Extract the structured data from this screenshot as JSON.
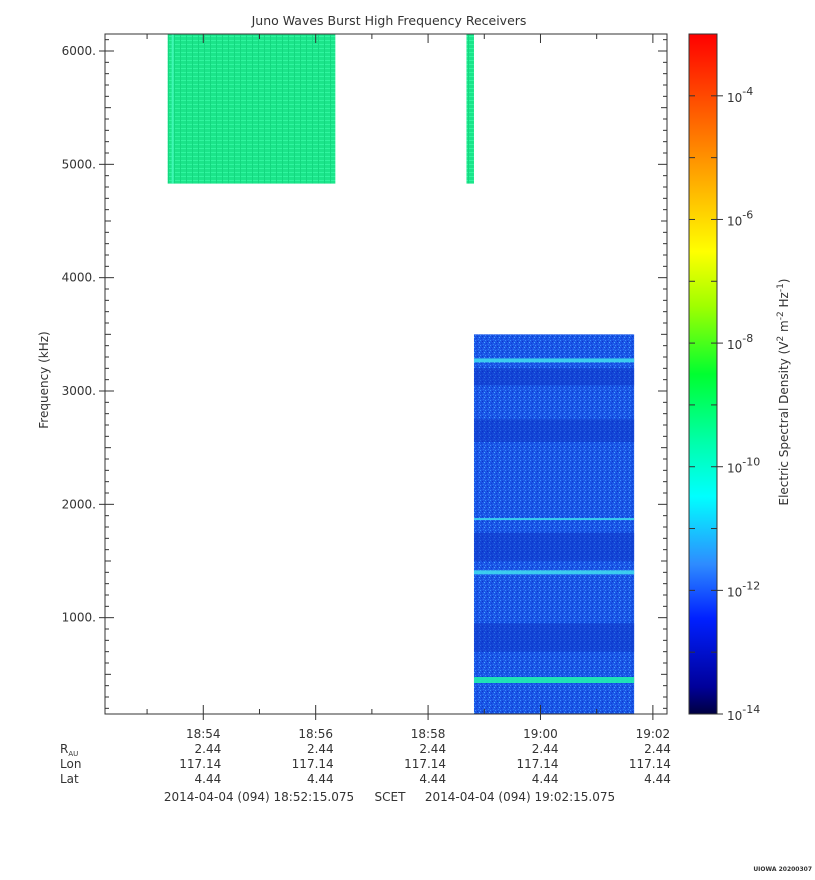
{
  "chart_data": {
    "type": "heatmap",
    "title": "Juno Waves Burst High Frequency Receivers",
    "ylabel": "Frequency (kHz)",
    "ylim": [
      150,
      6150
    ],
    "xlim": [
      "18:52:15.075",
      "19:02:15.075"
    ],
    "y_ticks": [
      {
        "value": 1000,
        "label": "1000."
      },
      {
        "value": 2000,
        "label": "2000."
      },
      {
        "value": 3000,
        "label": "3000."
      },
      {
        "value": 4000,
        "label": "4000."
      },
      {
        "value": 5000,
        "label": "5000."
      },
      {
        "value": 6000,
        "label": "6000."
      }
    ],
    "x_ticks": [
      "18:54",
      "18:56",
      "18:58",
      "19:00",
      "19:02"
    ],
    "ephemeris": {
      "rows": [
        {
          "label": "R",
          "sub": "AU",
          "values": [
            "2.44",
            "2.44",
            "2.44",
            "2.44",
            "2.44"
          ]
        },
        {
          "label": "Lon",
          "values": [
            "117.14",
            "117.14",
            "117.14",
            "117.14",
            "117.14"
          ]
        },
        {
          "label": "Lat",
          "values": [
            "4.44",
            "4.44",
            "4.44",
            "4.44",
            "4.44"
          ]
        }
      ]
    },
    "time_range": {
      "start": "2014-04-04 (094) 18:52:15.075",
      "mid_label": "SCET",
      "end": "2014-04-04 (094) 19:02:15.075"
    },
    "colorbar": {
      "label": "Electric Spectral Density (V",
      "label_parts": [
        "Electric Spectral Density (V",
        "2",
        " m",
        "-2",
        " Hz",
        "-1",
        ")"
      ],
      "scale": "log",
      "range": [
        1e-14,
        0.001
      ],
      "ticks": [
        {
          "base": "10",
          "exp": "-14",
          "value": 1e-14
        },
        {
          "base": "10",
          "exp": "-12",
          "value": 1e-12
        },
        {
          "base": "10",
          "exp": "-10",
          "value": 1e-10
        },
        {
          "base": "10",
          "exp": "-8",
          "value": 1e-08
        },
        {
          "base": "10",
          "exp": "-6",
          "value": 1e-06
        },
        {
          "base": "10",
          "exp": "-4",
          "value": 0.0001
        }
      ]
    },
    "blocks": [
      {
        "name": "high-band-1",
        "t_start": "18:53:22",
        "t_end": "18:56:21",
        "f_min": 4830,
        "f_max": 6150,
        "level": 2e-10
      },
      {
        "name": "high-band-2",
        "t_start": "18:58:41",
        "t_end": "18:58:49",
        "f_min": 4830,
        "f_max": 6150,
        "level": 2e-10
      },
      {
        "name": "low-band",
        "t_start": "18:58:49",
        "t_end": "19:01:40",
        "f_min": 150,
        "f_max": 3500,
        "level": 3e-12,
        "lines_khz": [
          450,
          1400,
          1870,
          3270
        ]
      }
    ],
    "grid": false
  },
  "footer": {
    "credit": "UIOWA 20200307"
  }
}
